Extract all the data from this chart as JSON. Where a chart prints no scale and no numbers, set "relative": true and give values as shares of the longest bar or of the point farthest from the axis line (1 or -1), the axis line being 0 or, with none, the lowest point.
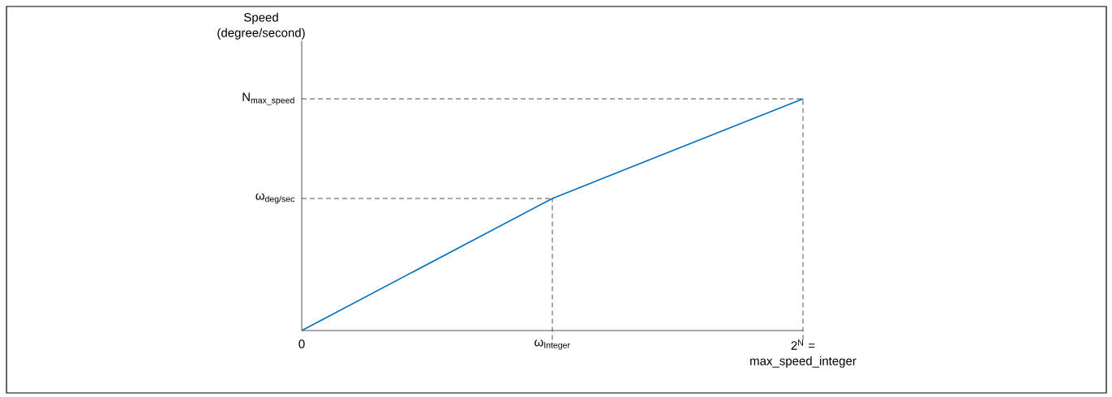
{
  "chart_data": {
    "type": "line",
    "relative": true,
    "ylabel": "Speed (degree/second)",
    "categories": [
      "0",
      "ω$_{Integer}$",
      "2$^{N}$ = max_speed_integer"
    ],
    "series": [
      {
        "color": "#0070c0",
        "values": [
          0,
          0.57,
          1
        ]
      }
    ],
    "ref_lines": [
      {
        "axis": "y",
        "value": 0.57,
        "label": "ω$_{deg/sec}$",
        "line_style": "dashed",
        "color": "#262626"
      },
      {
        "axis": "y",
        "value": 1,
        "label": "N$_{max_speed}$",
        "line_style": "dashed",
        "color": "#262626"
      },
      {
        "axis": "x",
        "value": "ω$_{Integer}$",
        "line_style": "dashed",
        "color": "#262626"
      },
      {
        "axis": "x",
        "value": "2$^{N}$ = max_speed_integer",
        "line_style": "dashed",
        "color": "#262626"
      }
    ]
  }
}
